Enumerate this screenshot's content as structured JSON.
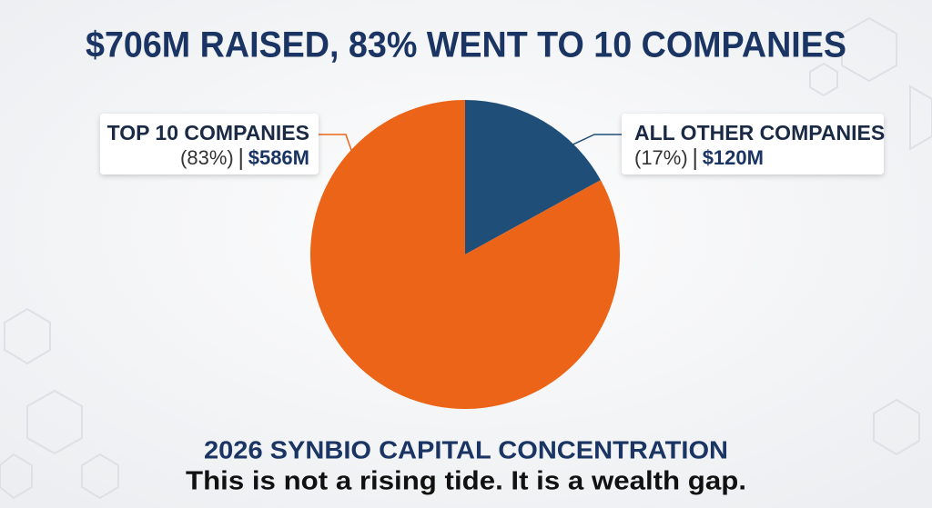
{
  "chart_data": {
    "type": "pie",
    "title": "$706M RAISED, 83% WENT TO 10 COMPANIES",
    "subtitle": "2026 SYNBIO CAPITAL CONCENTRATION",
    "annotation": "This is not a rising tide. It is a wealth gap.",
    "categories": [
      "ALL OTHER COMPANIES",
      "TOP 10 COMPANIES"
    ],
    "values": [
      17,
      83
    ],
    "value_labels": [
      "(17%)",
      "(83%)"
    ],
    "amounts": [
      "$120M",
      "$586M"
    ],
    "colors": [
      "#1f4e79",
      "#ec6418"
    ]
  }
}
